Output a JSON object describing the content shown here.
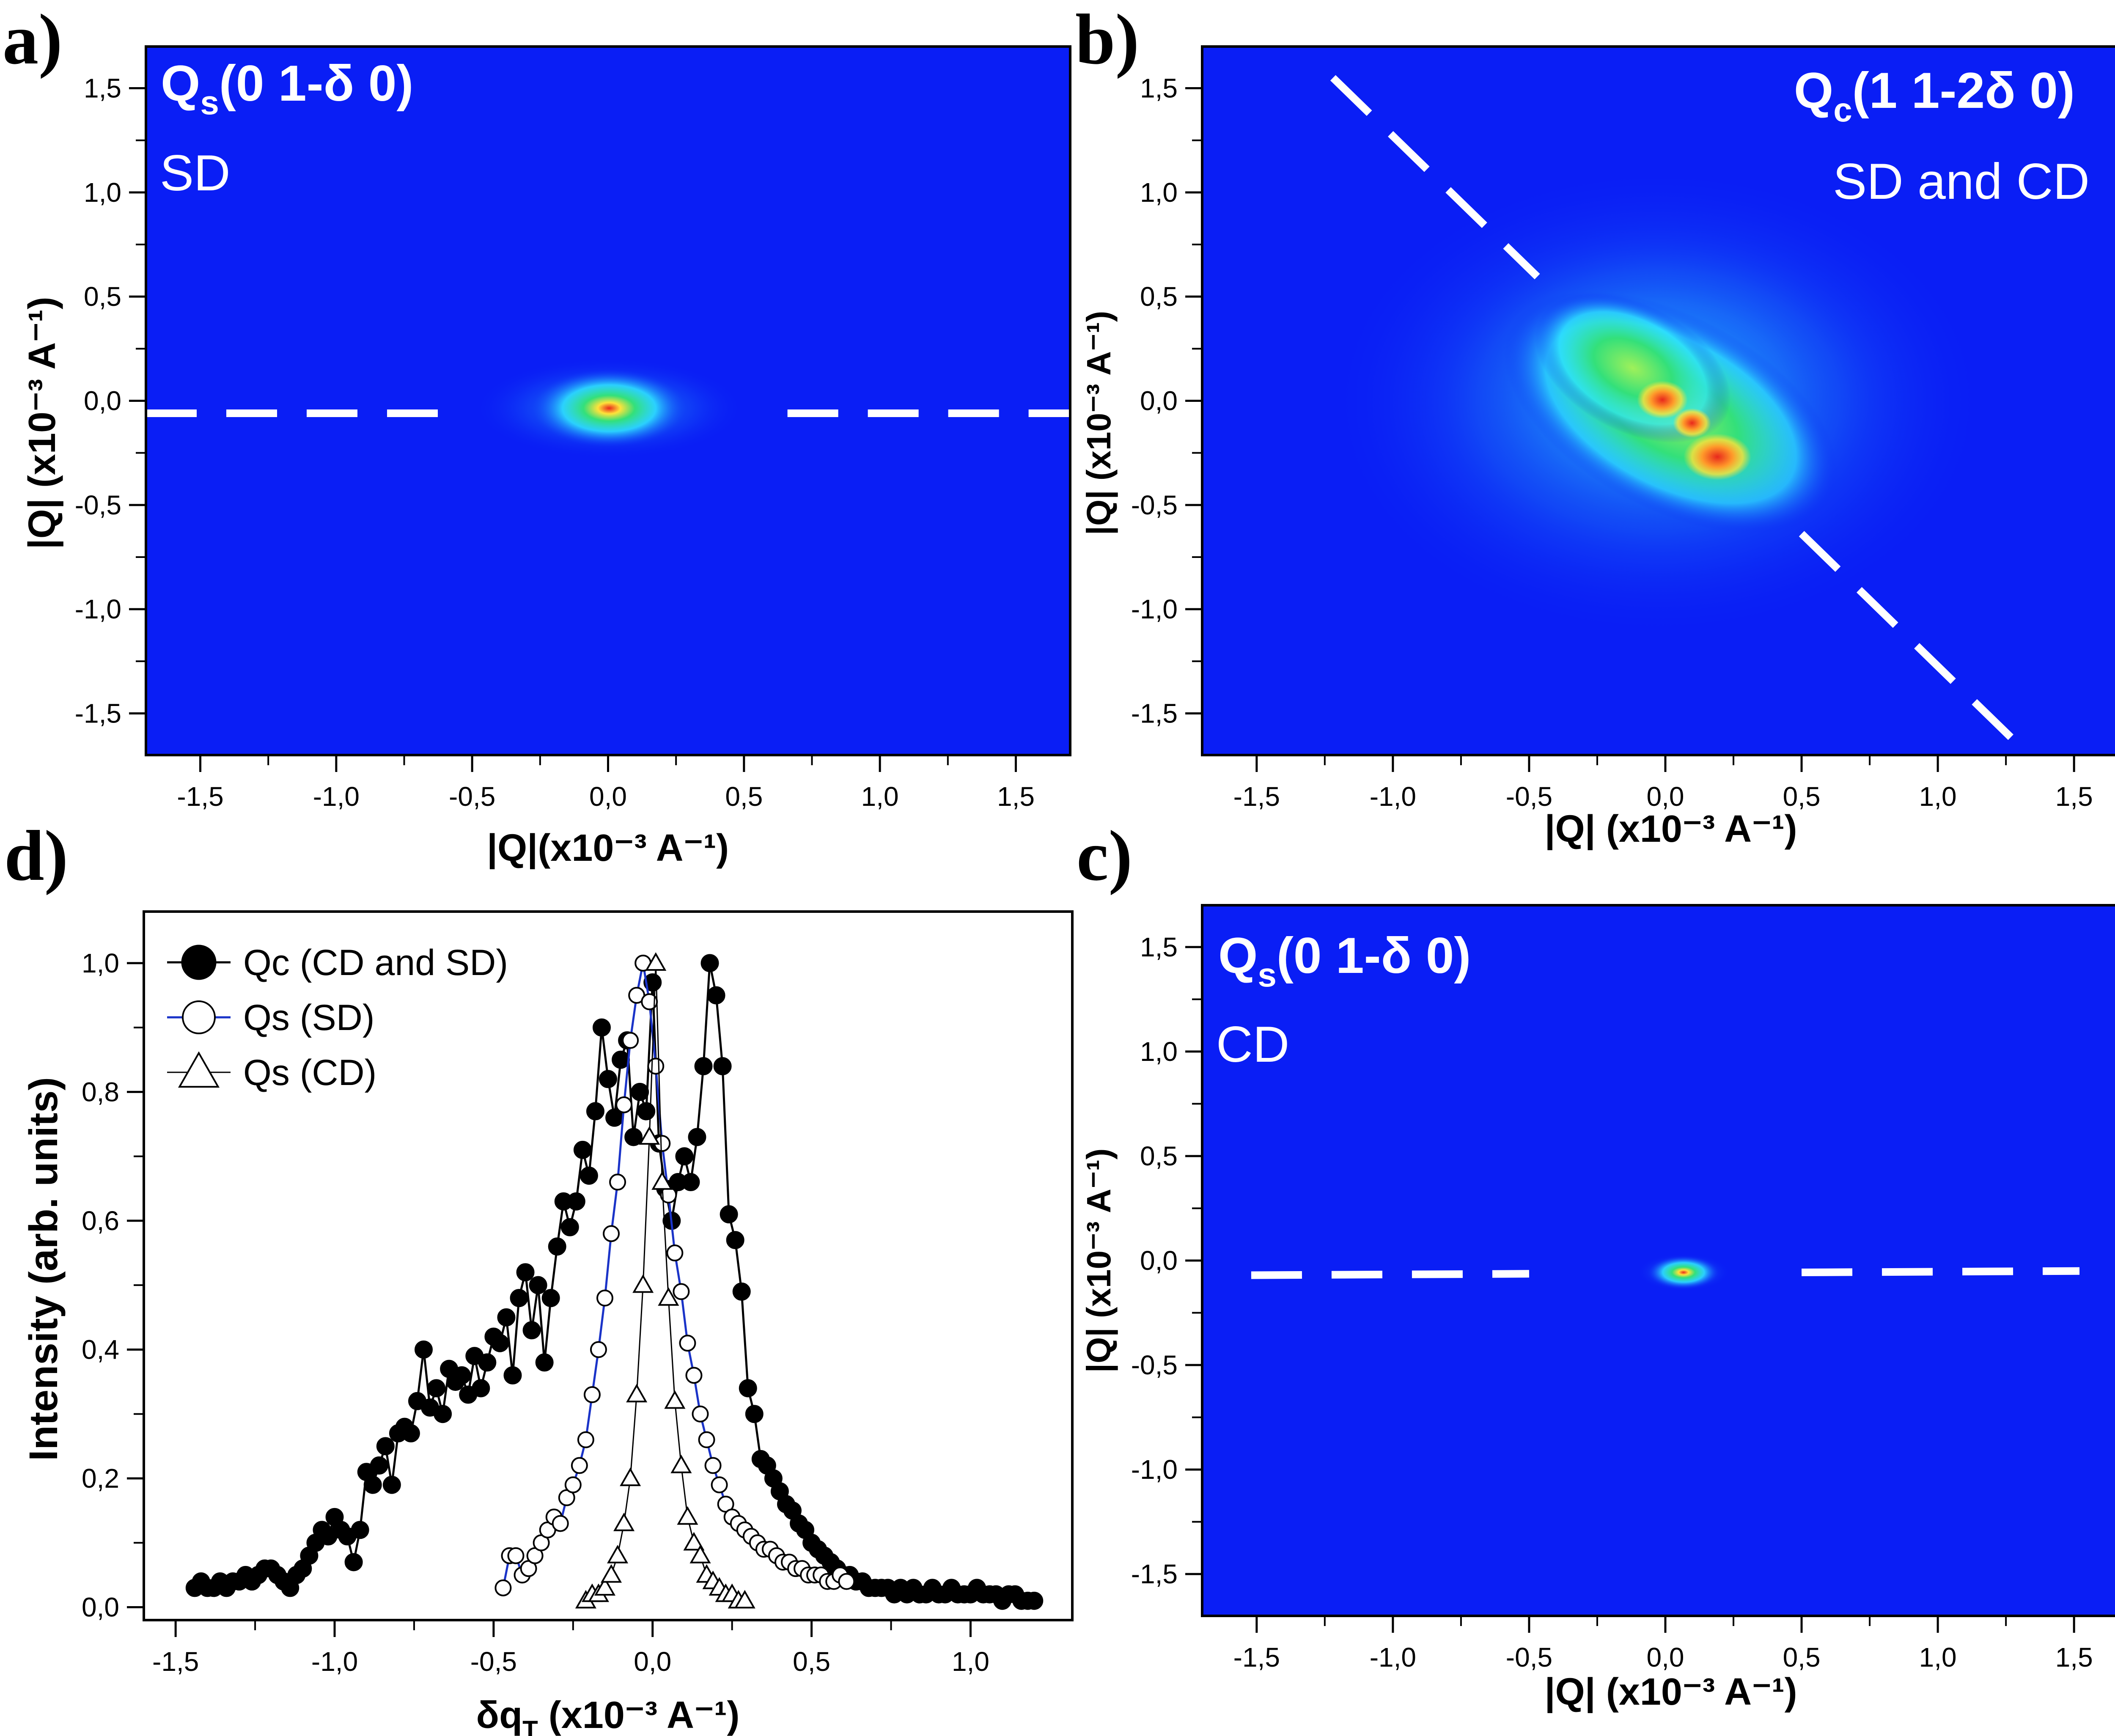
{
  "figure": {
    "colors": {
      "map_background": "#0a1ef5",
      "heat_cyan": "#2fe6ff",
      "heat_green": "#33e07a",
      "heat_yellow": "#ffe23a",
      "heat_red": "#e8281c",
      "dashed_line": "#ffffff",
      "axis": "#000000",
      "series_qs_sd_line": "#1a33c8"
    }
  },
  "chart_data": [
    {
      "panel": "a",
      "panel_label": "a)",
      "type": "heatmap",
      "title_main": "Q",
      "title_sub": "s",
      "title_rest": "(0 1-δ  0)",
      "subtitle": "SD",
      "xlabel": "|Q|(x10⁻³ A⁻¹)",
      "ylabel": "|Q| (x10⁻³ A⁻¹)",
      "xlim": [
        -1.7,
        1.7
      ],
      "ylim": [
        -1.7,
        1.7
      ],
      "xticks": [
        "-1,5",
        "-1,0",
        "-0,5",
        "0,0",
        "0,5",
        "1,0",
        "1,5"
      ],
      "xtick_values": [
        -1.5,
        -1.0,
        -0.5,
        0.0,
        0.5,
        1.0,
        1.5
      ],
      "yticks": [
        "1,5",
        "1,0",
        "0,5",
        "0,0",
        "-0,5",
        "-1,0",
        "-1,5"
      ],
      "ytick_values": [
        1.5,
        1.0,
        0.5,
        0.0,
        -0.5,
        -1.0,
        -1.5
      ],
      "peak_center": [
        0.0,
        -0.03
      ],
      "dashed_line": {
        "from": [
          -1.7,
          -0.06
        ],
        "to": [
          1.7,
          -0.06
        ],
        "gap": [
          -0.62,
          0.66
        ]
      }
    },
    {
      "panel": "b",
      "panel_label": "b)",
      "type": "heatmap",
      "title_main": "Q",
      "title_sub": "c",
      "title_rest": "(1 1-2δ  0)",
      "subtitle": "SD and CD",
      "xlabel": "|Q| (x10⁻³ A⁻¹)",
      "ylabel": "|Q| (x10⁻³ A⁻¹)",
      "xlim": [
        -1.7,
        1.7
      ],
      "ylim": [
        -1.7,
        1.7
      ],
      "xticks": [
        "-1,5",
        "-1,0",
        "-0,5",
        "0,0",
        "0,5",
        "1,0",
        "1,5"
      ],
      "xtick_values": [
        -1.5,
        -1.0,
        -0.5,
        0.0,
        0.5,
        1.0,
        1.5
      ],
      "yticks": [
        "1,5",
        "1,0",
        "0,5",
        "0,0",
        "-0,5",
        "-1,0",
        "-1,5"
      ],
      "ytick_values": [
        1.5,
        1.0,
        0.5,
        0.0,
        -0.5,
        -1.0,
        -1.5
      ],
      "peak_center": [
        0.1,
        -0.15
      ],
      "dashed_line": {
        "from": [
          -1.22,
          1.55
        ],
        "to": [
          1.28,
          -1.63
        ],
        "gap": [
          -0.47,
          0.5
        ]
      }
    },
    {
      "panel": "c",
      "panel_label": "c)",
      "type": "heatmap",
      "title_main": "Q",
      "title_sub": "s",
      "title_rest": "(0 1-δ  0)",
      "subtitle": "CD",
      "xlabel": "|Q| (x10⁻³ A⁻¹)",
      "ylabel": "|Q| (x10⁻³ A⁻¹)",
      "xlim": [
        -1.7,
        1.7
      ],
      "ylim": [
        -1.7,
        1.7
      ],
      "xticks": [
        "-1,5",
        "-1,0",
        "-0,5",
        "0,0",
        "0,5",
        "1,0",
        "1,5"
      ],
      "xtick_values": [
        -1.5,
        -1.0,
        -0.5,
        0.0,
        0.5,
        1.0,
        1.5
      ],
      "yticks": [
        "1,5",
        "1,0",
        "0,5",
        "0,0",
        "-0,5",
        "-1,0",
        "-1,5"
      ],
      "ytick_values": [
        1.5,
        1.0,
        0.5,
        0.0,
        -0.5,
        -1.0,
        -1.5
      ],
      "peak_center": [
        0.05,
        -0.04
      ],
      "dashed_line": {
        "from": [
          -1.52,
          -0.07
        ],
        "to": [
          1.52,
          -0.05
        ],
        "gap": [
          -0.5,
          0.5
        ]
      }
    },
    {
      "panel": "d",
      "panel_label": "d)",
      "type": "line",
      "xlabel": "δq",
      "xlabel_sub": "T",
      "xlabel_rest": " (x10⁻³ A⁻¹)",
      "ylabel": "Intensity (arb. units)",
      "xlim": [
        -1.6,
        1.32
      ],
      "ylim": [
        -0.02,
        1.08
      ],
      "xticks": [
        "-1,5",
        "-1,0",
        "-0,5",
        "0,0",
        "0,5",
        "1,0"
      ],
      "xtick_values": [
        -1.5,
        -1.0,
        -0.5,
        0.0,
        0.5,
        1.0
      ],
      "yticks": [
        "0,0",
        "0,2",
        "0,4",
        "0,6",
        "0,8",
        "1,0"
      ],
      "ytick_values": [
        0.0,
        0.2,
        0.4,
        0.6,
        0.8,
        1.0
      ],
      "legend_position": "top-left",
      "series": [
        {
          "name": "Qc (CD and SD)",
          "marker": "filled-circle",
          "line_color": "#000000",
          "x": [
            -1.44,
            -1.42,
            -1.4,
            -1.38,
            -1.36,
            -1.34,
            -1.32,
            -1.3,
            -1.28,
            -1.26,
            -1.24,
            -1.22,
            -1.2,
            -1.18,
            -1.16,
            -1.14,
            -1.12,
            -1.1,
            -1.08,
            -1.06,
            -1.04,
            -1.02,
            -1.0,
            -0.98,
            -0.96,
            -0.94,
            -0.92,
            -0.9,
            -0.88,
            -0.86,
            -0.84,
            -0.82,
            -0.8,
            -0.78,
            -0.76,
            -0.74,
            -0.72,
            -0.7,
            -0.68,
            -0.66,
            -0.64,
            -0.62,
            -0.6,
            -0.58,
            -0.56,
            -0.54,
            -0.52,
            -0.5,
            -0.48,
            -0.46,
            -0.44,
            -0.42,
            -0.4,
            -0.38,
            -0.36,
            -0.34,
            -0.32,
            -0.3,
            -0.28,
            -0.26,
            -0.24,
            -0.22,
            -0.2,
            -0.18,
            -0.16,
            -0.14,
            -0.12,
            -0.1,
            -0.08,
            -0.06,
            -0.04,
            -0.02,
            0.0,
            0.02,
            0.04,
            0.06,
            0.08,
            0.1,
            0.12,
            0.14,
            0.16,
            0.18,
            0.2,
            0.22,
            0.24,
            0.26,
            0.28,
            0.3,
            0.32,
            0.34,
            0.36,
            0.38,
            0.4,
            0.42,
            0.44,
            0.46,
            0.48,
            0.5,
            0.52,
            0.54,
            0.56,
            0.58,
            0.6,
            0.62,
            0.64,
            0.66,
            0.68,
            0.7,
            0.72,
            0.74,
            0.76,
            0.78,
            0.8,
            0.82,
            0.84,
            0.86,
            0.88,
            0.9,
            0.92,
            0.94,
            0.96,
            0.98,
            1.0,
            1.02,
            1.04,
            1.06,
            1.08,
            1.1,
            1.12,
            1.14,
            1.16,
            1.18,
            1.2
          ],
          "y": [
            0.03,
            0.04,
            0.03,
            0.03,
            0.04,
            0.03,
            0.04,
            0.04,
            0.05,
            0.04,
            0.05,
            0.06,
            0.06,
            0.05,
            0.04,
            0.03,
            0.05,
            0.06,
            0.08,
            0.1,
            0.12,
            0.11,
            0.14,
            0.12,
            0.11,
            0.07,
            0.12,
            0.21,
            0.19,
            0.22,
            0.25,
            0.19,
            0.27,
            0.28,
            0.27,
            0.32,
            0.4,
            0.31,
            0.34,
            0.3,
            0.37,
            0.35,
            0.36,
            0.33,
            0.39,
            0.34,
            0.38,
            0.42,
            0.41,
            0.45,
            0.36,
            0.48,
            0.52,
            0.43,
            0.5,
            0.38,
            0.48,
            0.56,
            0.63,
            0.59,
            0.63,
            0.71,
            0.67,
            0.77,
            0.9,
            0.82,
            0.76,
            0.85,
            0.88,
            0.73,
            0.8,
            0.77,
            0.97,
            0.72,
            0.65,
            0.6,
            0.66,
            0.7,
            0.66,
            0.73,
            0.84,
            1.0,
            0.95,
            0.84,
            0.61,
            0.57,
            0.49,
            0.34,
            0.3,
            0.23,
            0.22,
            0.2,
            0.18,
            0.16,
            0.15,
            0.13,
            0.12,
            0.1,
            0.09,
            0.08,
            0.07,
            0.06,
            0.05,
            0.05,
            0.04,
            0.04,
            0.03,
            0.03,
            0.03,
            0.03,
            0.02,
            0.03,
            0.02,
            0.03,
            0.02,
            0.02,
            0.03,
            0.02,
            0.02,
            0.03,
            0.02,
            0.02,
            0.02,
            0.03,
            0.02,
            0.02,
            0.02,
            0.01,
            0.02,
            0.02,
            0.01,
            0.01,
            0.01
          ]
        },
        {
          "name": "Qs (SD)",
          "marker": "open-circle",
          "line_color": "#1a33c8",
          "x": [
            -0.47,
            -0.45,
            -0.43,
            -0.41,
            -0.39,
            -0.37,
            -0.35,
            -0.33,
            -0.31,
            -0.29,
            -0.27,
            -0.25,
            -0.23,
            -0.21,
            -0.19,
            -0.17,
            -0.15,
            -0.13,
            -0.11,
            -0.09,
            -0.07,
            -0.05,
            -0.03,
            -0.01,
            0.01,
            0.03,
            0.05,
            0.07,
            0.09,
            0.11,
            0.13,
            0.15,
            0.17,
            0.19,
            0.21,
            0.23,
            0.25,
            0.27,
            0.29,
            0.31,
            0.33,
            0.35,
            0.37,
            0.39,
            0.41,
            0.43,
            0.45,
            0.47,
            0.49,
            0.51,
            0.53,
            0.55,
            0.57,
            0.59,
            0.61
          ],
          "y": [
            0.03,
            0.08,
            0.08,
            0.05,
            0.06,
            0.08,
            0.1,
            0.12,
            0.14,
            0.13,
            0.17,
            0.19,
            0.22,
            0.26,
            0.33,
            0.4,
            0.48,
            0.58,
            0.66,
            0.78,
            0.88,
            0.95,
            1.0,
            0.94,
            0.84,
            0.72,
            0.64,
            0.55,
            0.49,
            0.41,
            0.36,
            0.3,
            0.26,
            0.22,
            0.19,
            0.16,
            0.14,
            0.13,
            0.12,
            0.11,
            0.1,
            0.09,
            0.09,
            0.08,
            0.07,
            0.07,
            0.06,
            0.06,
            0.05,
            0.05,
            0.05,
            0.04,
            0.04,
            0.05,
            0.04
          ]
        },
        {
          "name": "Qs (CD)",
          "marker": "open-triangle",
          "line_color": "#000000",
          "x": [
            -0.21,
            -0.19,
            -0.17,
            -0.15,
            -0.13,
            -0.11,
            -0.09,
            -0.07,
            -0.05,
            -0.03,
            -0.01,
            0.01,
            0.03,
            0.05,
            0.07,
            0.09,
            0.11,
            0.13,
            0.15,
            0.17,
            0.19,
            0.21,
            0.23,
            0.25,
            0.27,
            0.29
          ],
          "y": [
            0.01,
            0.02,
            0.02,
            0.03,
            0.05,
            0.08,
            0.13,
            0.2,
            0.33,
            0.5,
            0.73,
            1.0,
            0.66,
            0.48,
            0.32,
            0.22,
            0.14,
            0.1,
            0.08,
            0.05,
            0.04,
            0.03,
            0.02,
            0.02,
            0.01,
            0.01
          ]
        }
      ]
    }
  ]
}
